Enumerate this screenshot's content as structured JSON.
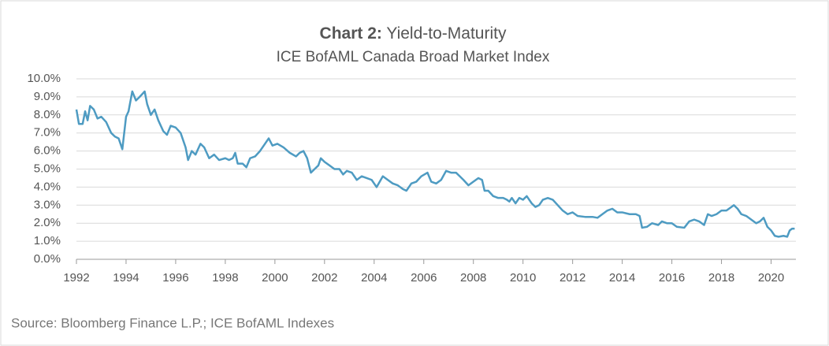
{
  "chart_data": {
    "type": "line",
    "title_label": "Chart 2:",
    "title": "Yield-to-Maturity",
    "subtitle": "ICE BofAML Canada Broad Market Index",
    "source": "Source: Bloomberg Finance L.P.; ICE BofAML Indexes",
    "x": [
      1992.0,
      1992.1,
      1992.25,
      1992.35,
      1992.45,
      1992.55,
      1992.7,
      1992.85,
      1993.0,
      1993.2,
      1993.4,
      1993.55,
      1993.7,
      1993.85,
      1994.0,
      1994.1,
      1994.25,
      1994.4,
      1994.55,
      1994.75,
      1994.85,
      1995.0,
      1995.15,
      1995.3,
      1995.5,
      1995.65,
      1995.8,
      1996.0,
      1996.2,
      1996.4,
      1996.5,
      1996.65,
      1996.8,
      1997.0,
      1997.15,
      1997.35,
      1997.55,
      1997.75,
      1998.0,
      1998.15,
      1998.3,
      1998.4,
      1998.5,
      1998.7,
      1998.85,
      1999.0,
      1999.2,
      1999.4,
      1999.6,
      1999.75,
      1999.9,
      2000.1,
      2000.35,
      2000.6,
      2000.85,
      2001.0,
      2001.15,
      2001.3,
      2001.45,
      2001.6,
      2001.75,
      2001.85,
      2002.0,
      2002.2,
      2002.4,
      2002.6,
      2002.75,
      2002.9,
      2003.1,
      2003.3,
      2003.5,
      2003.7,
      2003.9,
      2004.1,
      2004.35,
      2004.55,
      2004.75,
      2004.95,
      2005.15,
      2005.3,
      2005.5,
      2005.7,
      2005.9,
      2006.15,
      2006.3,
      2006.5,
      2006.7,
      2006.9,
      2007.1,
      2007.3,
      2007.45,
      2007.6,
      2007.8,
      2008.0,
      2008.2,
      2008.35,
      2008.45,
      2008.6,
      2008.8,
      2009.0,
      2009.2,
      2009.35,
      2009.45,
      2009.55,
      2009.7,
      2009.85,
      2010.0,
      2010.15,
      2010.35,
      2010.5,
      2010.65,
      2010.8,
      2011.0,
      2011.2,
      2011.4,
      2011.6,
      2011.8,
      2012.0,
      2012.2,
      2012.5,
      2012.8,
      2013.0,
      2013.2,
      2013.4,
      2013.6,
      2013.8,
      2014.0,
      2014.3,
      2014.55,
      2014.7,
      2014.8,
      2015.0,
      2015.2,
      2015.45,
      2015.6,
      2015.8,
      2016.0,
      2016.2,
      2016.5,
      2016.7,
      2016.9,
      2017.1,
      2017.3,
      2017.45,
      2017.6,
      2017.8,
      2018.0,
      2018.2,
      2018.4,
      2018.5,
      2018.65,
      2018.8,
      2019.0,
      2019.2,
      2019.4,
      2019.55,
      2019.7,
      2019.85,
      2020.0,
      2020.15,
      2020.3,
      2020.5,
      2020.65,
      2020.75,
      2020.85,
      2020.95
    ],
    "series": [
      {
        "color": "#4e9bc2",
        "values": [
          8.3,
          7.5,
          7.5,
          8.2,
          7.7,
          8.5,
          8.3,
          7.8,
          7.9,
          7.6,
          7.0,
          6.8,
          6.7,
          6.1,
          7.9,
          8.2,
          9.3,
          8.8,
          9.0,
          9.3,
          8.6,
          8.0,
          8.3,
          7.7,
          7.1,
          6.9,
          7.4,
          7.3,
          7.0,
          6.2,
          5.5,
          6.0,
          5.8,
          6.4,
          6.2,
          5.6,
          5.8,
          5.5,
          5.6,
          5.5,
          5.6,
          5.9,
          5.3,
          5.3,
          5.1,
          5.6,
          5.7,
          6.0,
          6.4,
          6.7,
          6.3,
          6.4,
          6.2,
          5.9,
          5.7,
          5.9,
          6.0,
          5.6,
          4.8,
          5.0,
          5.2,
          5.6,
          5.4,
          5.2,
          5.0,
          5.0,
          4.7,
          4.9,
          4.8,
          4.4,
          4.6,
          4.5,
          4.4,
          4.0,
          4.6,
          4.4,
          4.2,
          4.1,
          3.9,
          3.8,
          4.2,
          4.3,
          4.6,
          4.8,
          4.3,
          4.2,
          4.4,
          4.9,
          4.8,
          4.8,
          4.6,
          4.4,
          4.1,
          4.3,
          4.5,
          4.4,
          3.8,
          3.8,
          3.5,
          3.4,
          3.4,
          3.3,
          3.2,
          3.4,
          3.1,
          3.4,
          3.3,
          3.5,
          3.1,
          2.9,
          3.0,
          3.3,
          3.4,
          3.3,
          3.0,
          2.7,
          2.5,
          2.6,
          2.4,
          2.35,
          2.35,
          2.3,
          2.5,
          2.7,
          2.8,
          2.6,
          2.6,
          2.5,
          2.5,
          2.4,
          1.75,
          1.8,
          2.0,
          1.9,
          2.1,
          2.0,
          2.0,
          1.8,
          1.75,
          2.1,
          2.2,
          2.1,
          1.9,
          2.5,
          2.4,
          2.5,
          2.7,
          2.7,
          2.9,
          3.0,
          2.8,
          2.5,
          2.4,
          2.2,
          2.0,
          2.1,
          2.3,
          1.8,
          1.6,
          1.3,
          1.25,
          1.3,
          1.25,
          1.6,
          1.7,
          1.7
        ]
      }
    ],
    "xlim": [
      1992,
      2021
    ],
    "xticks": [
      1992,
      1994,
      1996,
      1998,
      2000,
      2002,
      2004,
      2006,
      2008,
      2010,
      2012,
      2014,
      2016,
      2018,
      2020
    ],
    "ylim": [
      0,
      10
    ],
    "yticks": [
      {
        "value": 0,
        "label": "0.0%"
      },
      {
        "value": 1,
        "label": "1.0%"
      },
      {
        "value": 2,
        "label": "2.0%"
      },
      {
        "value": 3,
        "label": "3.0%"
      },
      {
        "value": 4,
        "label": "4.0%"
      },
      {
        "value": 5,
        "label": "5.0%"
      },
      {
        "value": 6,
        "label": "6.0%"
      },
      {
        "value": 7,
        "label": "7.0%"
      },
      {
        "value": 8,
        "label": "8.0%"
      },
      {
        "value": 9,
        "label": "9.0%"
      },
      {
        "value": 10,
        "label": "10.0%"
      }
    ],
    "grid": true
  }
}
